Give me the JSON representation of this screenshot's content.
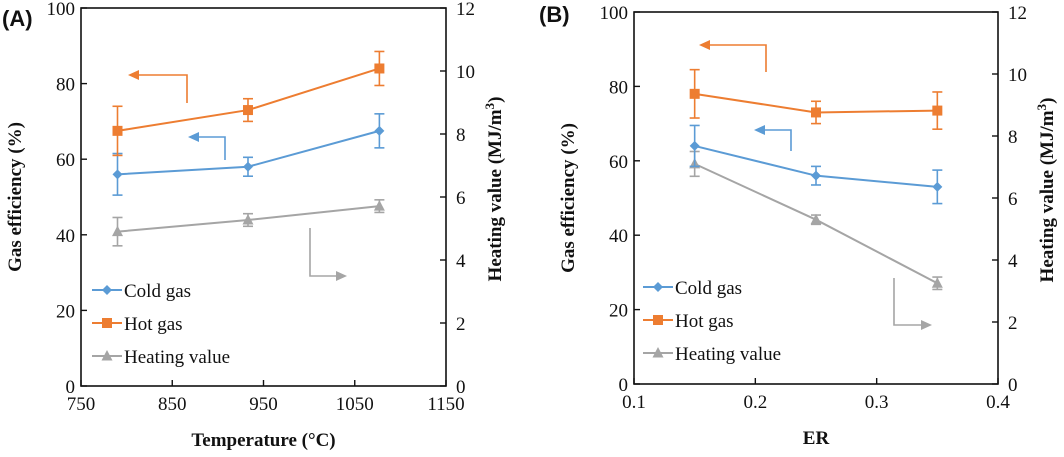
{
  "chart_data": [
    {
      "type": "line",
      "panel_label": "(A)",
      "title": "",
      "xlabel": "Temperature (°C)",
      "ylabel": "Gas efficiency (%)",
      "y2label": "Heating value (MJ/m",
      "y2label_sup": "3",
      "y2label_end": ")",
      "xlim": [
        750,
        1150
      ],
      "xticks": [
        750,
        850,
        950,
        1050,
        1150
      ],
      "ylim": [
        0,
        100
      ],
      "yticks": [
        0,
        20,
        40,
        60,
        80,
        100
      ],
      "y2lim": [
        0,
        12
      ],
      "y2ticks": [
        0,
        2,
        4,
        6,
        8,
        10,
        12
      ],
      "grid": false,
      "legend_position": "bottom-left",
      "x": [
        790,
        933,
        1077
      ],
      "series": [
        {
          "name": "Cold gas",
          "axis": "left",
          "marker": "diamond",
          "color": "#5B9BD5",
          "values": [
            56,
            58,
            67.5
          ],
          "errors": [
            5.5,
            2.5,
            4.5
          ]
        },
        {
          "name": "Hot gas",
          "axis": "left",
          "marker": "square",
          "color": "#ED7D31",
          "values": [
            67.5,
            73,
            84
          ],
          "errors": [
            6.5,
            3,
            4.5
          ]
        },
        {
          "name": "Heating value",
          "axis": "right",
          "marker": "triangle",
          "color": "#A5A5A5",
          "values": [
            4.9,
            5.27,
            5.71
          ],
          "errors": [
            0.45,
            0.2,
            0.2
          ]
        }
      ],
      "annotations": [
        {
          "type": "arrow",
          "points_to": "left axis",
          "series": "Hot gas"
        },
        {
          "type": "arrow",
          "points_to": "left axis",
          "series": "Cold gas"
        },
        {
          "type": "arrow",
          "points_to": "right axis",
          "series": "Heating value"
        }
      ]
    },
    {
      "type": "line",
      "panel_label": "(B)",
      "title": "",
      "xlabel": "ER",
      "ylabel": "Gas efficiency (%)",
      "y2label": "Heating value (MJ/m",
      "y2label_sup": "3",
      "y2label_end": ")",
      "xlim": [
        0.1,
        0.4
      ],
      "xticks": [
        "0.1",
        "0.2",
        "0.3",
        "0.4"
      ],
      "ylim": [
        0,
        100
      ],
      "yticks": [
        0,
        20,
        40,
        60,
        80,
        100
      ],
      "y2lim": [
        0,
        12
      ],
      "y2ticks": [
        0,
        2,
        4,
        6,
        8,
        10,
        12
      ],
      "grid": false,
      "legend_position": "bottom-left",
      "x": [
        0.15,
        0.25,
        0.35
      ],
      "series": [
        {
          "name": "Cold gas",
          "axis": "left",
          "marker": "diamond",
          "color": "#5B9BD5",
          "values": [
            64,
            56,
            53
          ],
          "errors": [
            5.5,
            2.5,
            4.5
          ]
        },
        {
          "name": "Hot gas",
          "axis": "left",
          "marker": "square",
          "color": "#ED7D31",
          "values": [
            78,
            73,
            73.5
          ],
          "errors": [
            6.5,
            3,
            5
          ]
        },
        {
          "name": "Heating value",
          "axis": "right",
          "marker": "triangle",
          "color": "#A5A5A5",
          "values": [
            7.1,
            5.3,
            3.25
          ],
          "errors": [
            0.4,
            0.15,
            0.2
          ]
        }
      ],
      "annotations": [
        {
          "type": "arrow",
          "points_to": "left axis",
          "series": "Hot gas"
        },
        {
          "type": "arrow",
          "points_to": "left axis",
          "series": "Cold gas"
        },
        {
          "type": "arrow",
          "points_to": "right axis",
          "series": "Heating value"
        }
      ]
    }
  ]
}
